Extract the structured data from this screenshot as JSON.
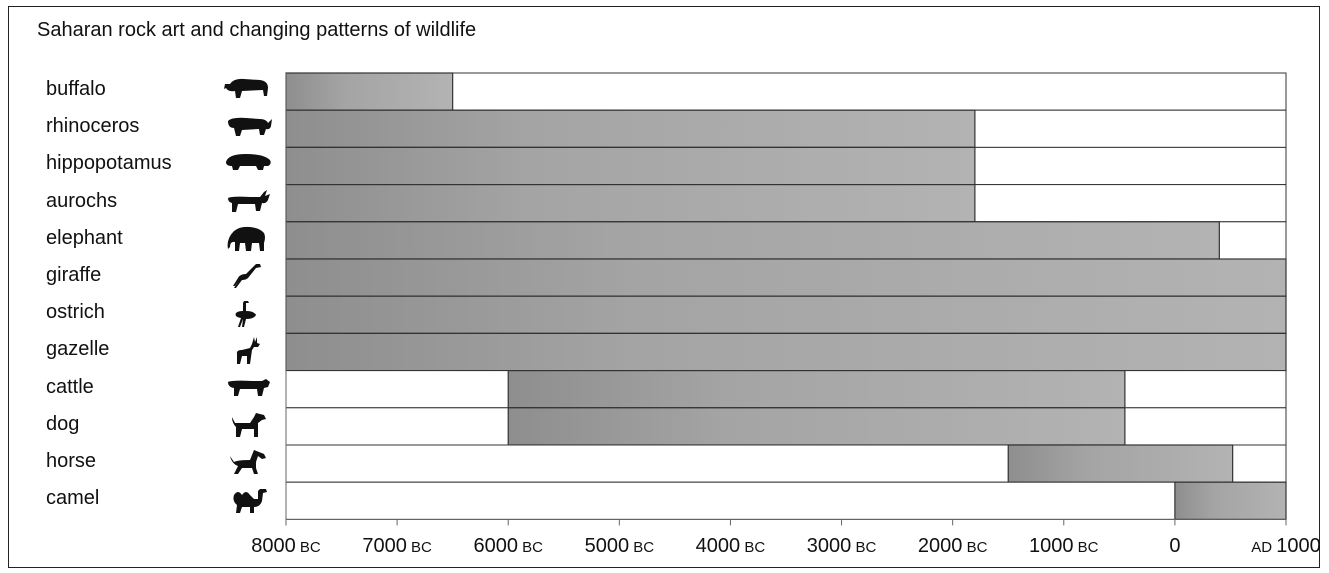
{
  "chart_data": {
    "type": "bar",
    "title": "Saharan rock art and changing patterns of wildlife",
    "xlabel": "",
    "ylabel": "",
    "xlim": [
      -8000,
      1000
    ],
    "categories": [
      "buffalo",
      "rhinoceros",
      "hippopotamus",
      "aurochs",
      "elephant",
      "giraffe",
      "ostrich",
      "gazelle",
      "cattle",
      "dog",
      "horse",
      "camel"
    ],
    "ranges": [
      {
        "category": "buffalo",
        "start": -8000,
        "end": -6500
      },
      {
        "category": "rhinoceros",
        "start": -8000,
        "end": -1800
      },
      {
        "category": "hippopotamus",
        "start": -8000,
        "end": -1800
      },
      {
        "category": "aurochs",
        "start": -8000,
        "end": -1800
      },
      {
        "category": "elephant",
        "start": -8000,
        "end": 400
      },
      {
        "category": "giraffe",
        "start": -8000,
        "end": 1000
      },
      {
        "category": "ostrich",
        "start": -8000,
        "end": 1000
      },
      {
        "category": "gazelle",
        "start": -8000,
        "end": 1000
      },
      {
        "category": "cattle",
        "start": -6000,
        "end": -450
      },
      {
        "category": "dog",
        "start": -6000,
        "end": -450
      },
      {
        "category": "horse",
        "start": -1500,
        "end": 520
      },
      {
        "category": "camel",
        "start": 0,
        "end": 1000
      }
    ],
    "ticks": [
      {
        "value": -8000,
        "num": "8000",
        "suffix": "BC",
        "prefix": ""
      },
      {
        "value": -7000,
        "num": "7000",
        "suffix": "BC",
        "prefix": ""
      },
      {
        "value": -6000,
        "num": "6000",
        "suffix": "BC",
        "prefix": ""
      },
      {
        "value": -5000,
        "num": "5000",
        "suffix": "BC",
        "prefix": ""
      },
      {
        "value": -4000,
        "num": "4000",
        "suffix": "BC",
        "prefix": ""
      },
      {
        "value": -3000,
        "num": "3000",
        "suffix": "BC",
        "prefix": ""
      },
      {
        "value": -2000,
        "num": "2000",
        "suffix": "BC",
        "prefix": ""
      },
      {
        "value": -1000,
        "num": "1000",
        "suffix": "BC",
        "prefix": ""
      },
      {
        "value": 0,
        "num": "0",
        "suffix": "",
        "prefix": ""
      },
      {
        "value": 1000,
        "num": "1000",
        "suffix": "",
        "prefix": "AD"
      }
    ],
    "icons": [
      "buffalo-icon",
      "rhinoceros-icon",
      "hippopotamus-icon",
      "aurochs-icon",
      "elephant-icon",
      "giraffe-icon",
      "ostrich-icon",
      "gazelle-icon",
      "cattle-icon",
      "dog-icon",
      "horse-icon",
      "camel-icon"
    ],
    "colors": {
      "bar_fill": "#a8a8a8",
      "bar_fill_dark": "#8f8f8f",
      "row_border": "#333333",
      "icon": "#111111"
    }
  }
}
